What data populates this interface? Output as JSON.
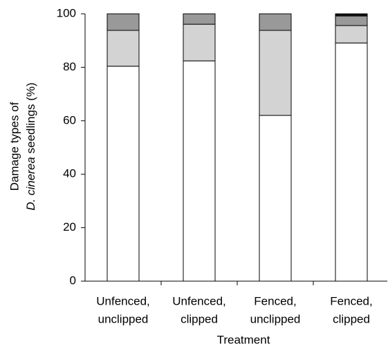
{
  "chart_data": {
    "type": "stacked_bar",
    "categories": [
      [
        "Unfenced,",
        "unclipped"
      ],
      [
        "Unfenced,",
        "clipped"
      ],
      [
        "Fenced,",
        "unclipped"
      ],
      [
        "Fenced,",
        "clipped"
      ]
    ],
    "series": [
      {
        "color": "#ffffff",
        "values": [
          80.4,
          82.4,
          62,
          89.1
        ]
      },
      {
        "color": "#d3d3d3",
        "values": [
          13.4,
          13.7,
          31.8,
          6.5
        ]
      },
      {
        "color": "#999999",
        "values": [
          6.2,
          3.9,
          6.2,
          3.6
        ]
      },
      {
        "color": "#111111",
        "values": [
          0,
          0,
          0,
          0.8
        ]
      }
    ],
    "ylim": [
      0,
      100
    ],
    "yticks": [
      0,
      20,
      40,
      60,
      80,
      100
    ],
    "xlabel": "Treatment",
    "ylabel": [
      "Damage types of",
      "D. cinerea",
      "seedlings (%)"
    ]
  }
}
